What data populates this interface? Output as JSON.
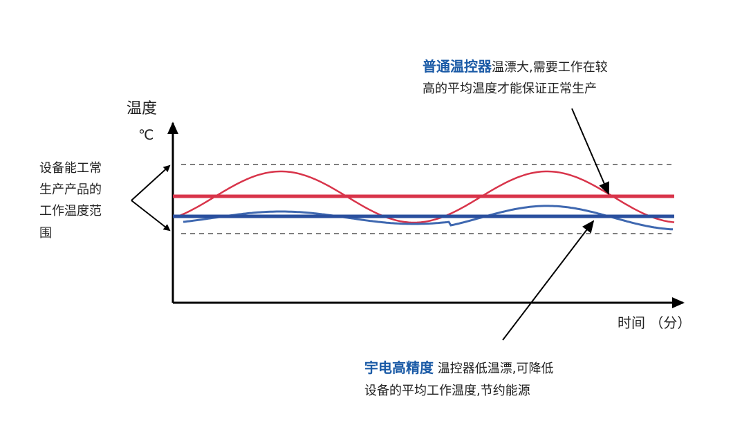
{
  "axes": {
    "y_label": "温度",
    "y_unit": "℃",
    "x_label": "时间 （分）"
  },
  "range_note": {
    "lines": [
      "设备能工常",
      "生产产品的",
      "工作温度范",
      "围"
    ]
  },
  "callouts": [
    {
      "highlight": "普通温控器",
      "lines": [
        "温漂大,需要工作在较",
        "高的平均温度才能保证正常生产"
      ]
    },
    {
      "highlight": "宇电高精度",
      "lines": [
        " 温控器低温漂,可降低",
        "设备的平均工作温度,节约能源"
      ]
    }
  ]
}
